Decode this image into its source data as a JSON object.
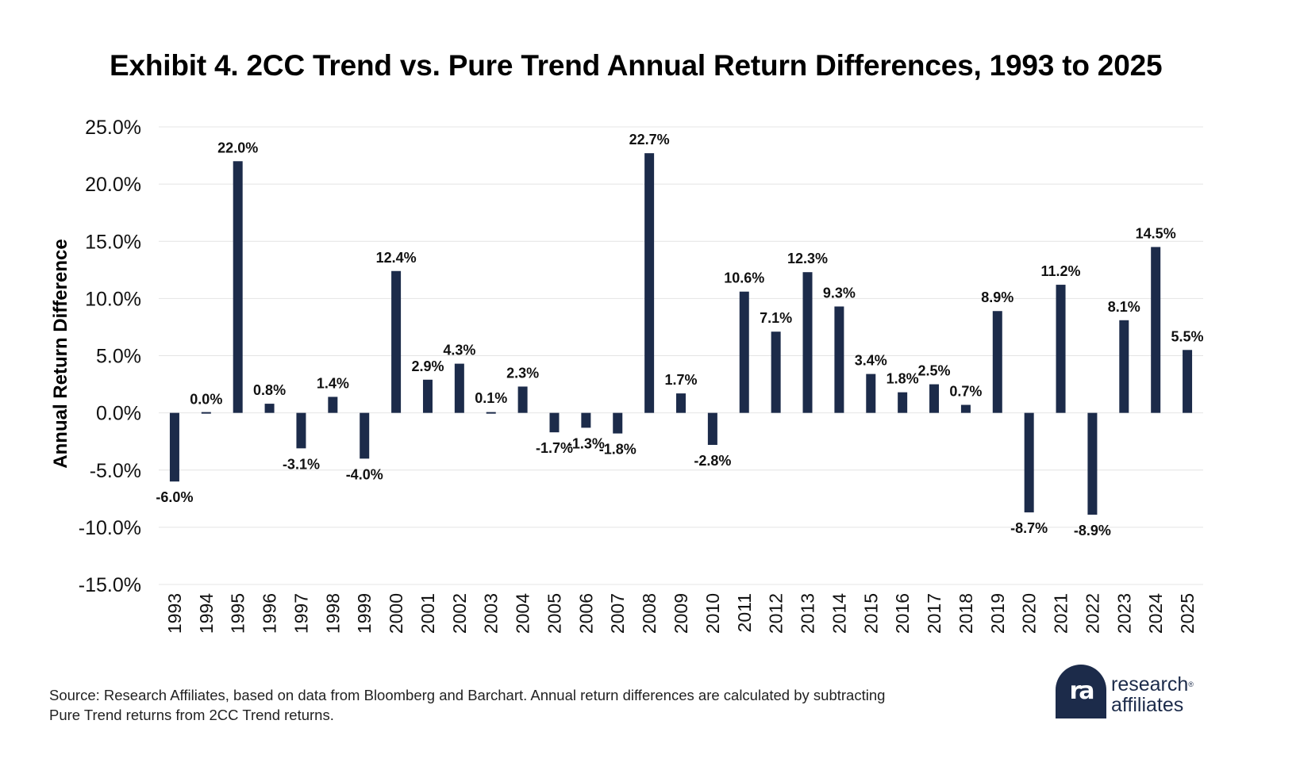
{
  "title": "Exhibit 4. 2CC Trend vs. Pure Trend Annual Return Differences, 1993 to 2025",
  "source_note": "Source: Research Affiliates, based on data from Bloomberg and Barchart. Annual return differences are calculated by subtracting Pure Trend returns from 2CC Trend returns.",
  "logo": {
    "line1": "research",
    "line2": "affiliates",
    "mark": "ra",
    "mark_icon": "research-affiliates-logo-icon"
  },
  "colors": {
    "bar": "#1c2b4a",
    "grid": "#e4e4e4"
  },
  "chart_data": {
    "type": "bar",
    "title": "Exhibit 4. 2CC Trend vs. Pure Trend Annual Return Differences, 1993 to 2025",
    "xlabel": "",
    "ylabel": "Annual Return Difference",
    "ylim": [
      -15,
      25
    ],
    "yticks": [
      25,
      20,
      15,
      10,
      5,
      0,
      -5,
      -10,
      -15
    ],
    "ytick_labels": [
      "25.0%",
      "20.0%",
      "15.0%",
      "10.0%",
      "5.0%",
      "0.0%",
      "-5.0%",
      "-10.0%",
      "-15.0%"
    ],
    "grid": true,
    "categories": [
      "1993",
      "1994",
      "1995",
      "1996",
      "1997",
      "1998",
      "1999",
      "2000",
      "2001",
      "2002",
      "2003",
      "2004",
      "2005",
      "2006",
      "2007",
      "2008",
      "2009",
      "2010",
      "2011",
      "2012",
      "2013",
      "2014",
      "2015",
      "2016",
      "2017",
      "2018",
      "2019",
      "2020",
      "2021",
      "2022",
      "2023",
      "2024",
      "2025"
    ],
    "values": [
      -6.0,
      0.0,
      22.0,
      0.8,
      -3.1,
      1.4,
      -4.0,
      12.4,
      2.9,
      4.3,
      0.1,
      2.3,
      -1.7,
      -1.3,
      -1.8,
      22.7,
      1.7,
      -2.8,
      10.6,
      7.1,
      12.3,
      9.3,
      3.4,
      1.8,
      2.5,
      0.7,
      8.9,
      -8.7,
      11.2,
      -8.9,
      8.1,
      14.5,
      5.5
    ],
    "data_labels": [
      "-6.0%",
      "0.0%",
      "22.0%",
      "0.8%",
      "-3.1%",
      "1.4%",
      "-4.0%",
      "12.4%",
      "2.9%",
      "4.3%",
      "0.1%",
      "2.3%",
      "-1.7%",
      "-1.3%",
      "-1.8%",
      "22.7%",
      "1.7%",
      "-2.8%",
      "10.6%",
      "7.1%",
      "12.3%",
      "9.3%",
      "3.4%",
      "1.8%",
      "2.5%",
      "0.7%",
      "8.9%",
      "-8.7%",
      "11.2%",
      "-8.9%",
      "8.1%",
      "14.5%",
      "5.5%"
    ]
  }
}
